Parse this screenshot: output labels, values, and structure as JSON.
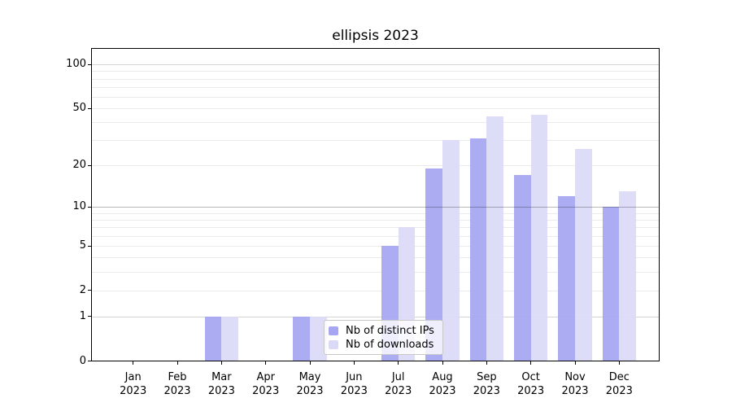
{
  "title": "ellipsis 2023",
  "colors": {
    "distinct_ips": "#a6a6f2",
    "downloads": "#dadaf7",
    "grid_minor": "#eaeaea",
    "grid_major": "#d4d4d4",
    "grid_emphasis": "rgba(0,0,0,0.28)",
    "axis": "#000000"
  },
  "legend": {
    "items": [
      {
        "label": "Nb of distinct IPs",
        "color_key": "distinct_ips"
      },
      {
        "label": "Nb of downloads",
        "color_key": "downloads"
      }
    ]
  },
  "chart_data": {
    "type": "bar",
    "title": "ellipsis 2023",
    "categories": [
      "Jan 2023",
      "Feb 2023",
      "Mar 2023",
      "Apr 2023",
      "May 2023",
      "Jun 2023",
      "Jul 2023",
      "Aug 2023",
      "Sep 2023",
      "Oct 2023",
      "Nov 2023",
      "Dec 2023"
    ],
    "series": [
      {
        "name": "Nb of distinct IPs",
        "color_key": "distinct_ips",
        "values": [
          0,
          0,
          1,
          0,
          1,
          0,
          5,
          19,
          31,
          17,
          12,
          10
        ]
      },
      {
        "name": "Nb of downloads",
        "color_key": "downloads",
        "values": [
          0,
          0,
          1,
          0,
          1,
          0,
          7,
          30,
          44,
          45,
          26,
          13
        ]
      }
    ],
    "xlabel": "",
    "ylabel": "",
    "yscale": "log1p",
    "ylim": [
      0,
      128
    ],
    "yticks": [
      0,
      1,
      2,
      5,
      10,
      20,
      50,
      100
    ],
    "minor_grid_values": [
      2,
      3,
      4,
      5,
      6,
      7,
      8,
      9,
      20,
      30,
      40,
      50,
      60,
      70,
      80,
      90
    ],
    "major_grid_values": [
      1,
      100
    ],
    "emphasis_grid_value": 10,
    "grid": "on",
    "legend_position": "inside lower center"
  }
}
